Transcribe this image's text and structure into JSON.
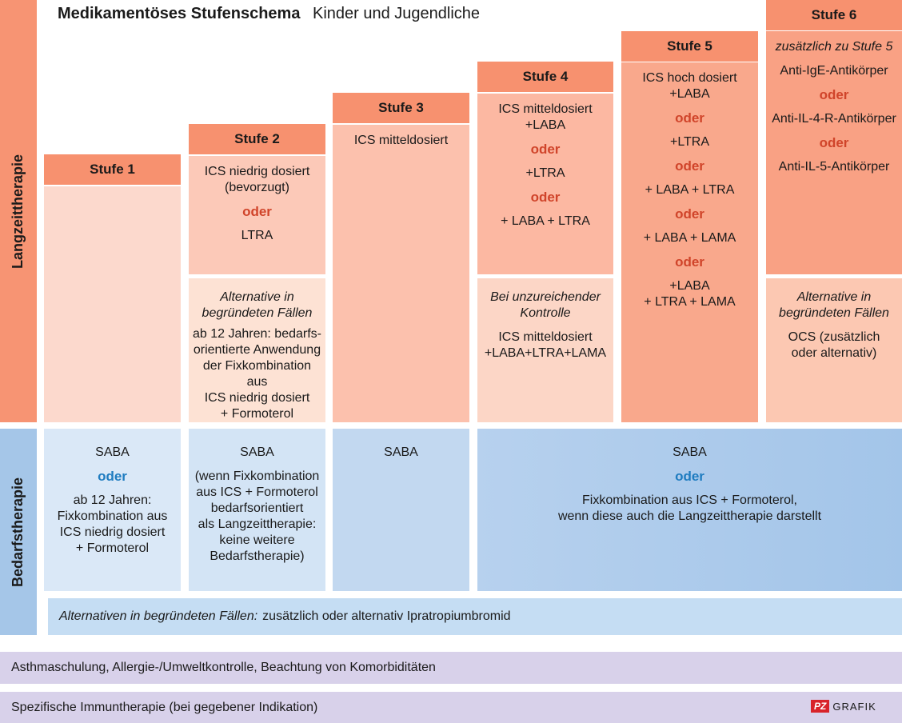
{
  "title": {
    "bold": "Medikamentöses Stufenschema",
    "subtitle": "Kinder und Jugendliche"
  },
  "sidebars": {
    "long_term": "Langzeittherapie",
    "on_demand": "Bedarfstherapie"
  },
  "steps": [
    {
      "header": "Stufe 1",
      "main": []
    },
    {
      "header": "Stufe 2",
      "main": [
        {
          "t": "text",
          "v": "ICS niedrig dosiert"
        },
        {
          "t": "text",
          "v": "(bevorzugt)"
        },
        {
          "t": "or",
          "v": "oder"
        },
        {
          "t": "text",
          "v": "LTRA"
        }
      ],
      "alt": [
        {
          "t": "it",
          "v": "Alternative in"
        },
        {
          "t": "it",
          "v": "begründeten Fällen"
        },
        {
          "t": "gap"
        },
        {
          "t": "text",
          "v": "ab 12 Jahren: bedarfs-"
        },
        {
          "t": "text",
          "v": "orientierte Anwendung"
        },
        {
          "t": "text",
          "v": "der Fixkombination aus"
        },
        {
          "t": "text",
          "v": "ICS niedrig dosiert"
        },
        {
          "t": "text",
          "v": "+ Formoterol"
        }
      ]
    },
    {
      "header": "Stufe 3",
      "main": [
        {
          "t": "text",
          "v": "ICS mitteldosiert"
        }
      ]
    },
    {
      "header": "Stufe 4",
      "main": [
        {
          "t": "text",
          "v": "ICS mitteldosiert"
        },
        {
          "t": "text",
          "v": "+LABA"
        },
        {
          "t": "or",
          "v": "oder"
        },
        {
          "t": "text",
          "v": "+LTRA"
        },
        {
          "t": "or",
          "v": "oder"
        },
        {
          "t": "text",
          "v": "+ LABA + LTRA"
        }
      ],
      "alt": [
        {
          "t": "it",
          "v": "Bei unzureichender"
        },
        {
          "t": "it",
          "v": "Kontrolle"
        },
        {
          "t": "gap"
        },
        {
          "t": "text",
          "v": "ICS mitteldosiert"
        },
        {
          "t": "text",
          "v": "+LABA+LTRA+LAMA"
        }
      ]
    },
    {
      "header": "Stufe 5",
      "main": [
        {
          "t": "text",
          "v": "ICS hoch dosiert"
        },
        {
          "t": "text",
          "v": "+LABA"
        },
        {
          "t": "or",
          "v": "oder"
        },
        {
          "t": "text",
          "v": "+LTRA"
        },
        {
          "t": "or",
          "v": "oder"
        },
        {
          "t": "text",
          "v": "+ LABA + LTRA"
        },
        {
          "t": "or",
          "v": "oder"
        },
        {
          "t": "text",
          "v": "+ LABA + LAMA"
        },
        {
          "t": "or",
          "v": "oder"
        },
        {
          "t": "text",
          "v": "+LABA"
        },
        {
          "t": "text",
          "v": "+ LTRA + LAMA"
        }
      ]
    },
    {
      "header": "Stufe 6",
      "main": [
        {
          "t": "it",
          "v": "zusätzlich zu Stufe 5"
        },
        {
          "t": "gap"
        },
        {
          "t": "text",
          "v": "Anti-IgE-Antikörper"
        },
        {
          "t": "or",
          "v": "oder"
        },
        {
          "t": "text",
          "v": "Anti-IL-4-R-Antikörper"
        },
        {
          "t": "or",
          "v": "oder"
        },
        {
          "t": "text",
          "v": "Anti-IL-5-Antikörper"
        }
      ],
      "alt": [
        {
          "t": "it",
          "v": "Alternative in"
        },
        {
          "t": "it",
          "v": "begründeten Fällen"
        },
        {
          "t": "gap"
        },
        {
          "t": "text",
          "v": "OCS  (zusätzlich"
        },
        {
          "t": "text",
          "v": "oder alternativ)"
        }
      ]
    }
  ],
  "on_demand": [
    [
      {
        "t": "text",
        "v": "SABA"
      },
      {
        "t": "or",
        "v": "oder"
      },
      {
        "t": "text",
        "v": "ab 12 Jahren:"
      },
      {
        "t": "text",
        "v": "Fixkombination aus"
      },
      {
        "t": "text",
        "v": "ICS niedrig dosiert"
      },
      {
        "t": "text",
        "v": "+ Formoterol"
      }
    ],
    [
      {
        "t": "text",
        "v": "SABA"
      },
      {
        "t": "gap"
      },
      {
        "t": "text",
        "v": "(wenn Fixkombination"
      },
      {
        "t": "text",
        "v": "aus ICS + Formoterol"
      },
      {
        "t": "text",
        "v": "bedarfsorientiert"
      },
      {
        "t": "text",
        "v": "als Langzeittherapie:"
      },
      {
        "t": "text",
        "v": "keine weitere"
      },
      {
        "t": "text",
        "v": "Bedarfstherapie)"
      }
    ],
    [
      {
        "t": "text",
        "v": "SABA"
      }
    ],
    [
      {
        "t": "text",
        "v": "SABA"
      },
      {
        "t": "or",
        "v": "oder"
      },
      {
        "t": "text",
        "v": "Fixkombination aus ICS + Formoterol,"
      },
      {
        "t": "text",
        "v": "wenn diese auch die Langzeittherapie darstellt"
      }
    ]
  ],
  "alternatives_band": {
    "italic": "Alternativen in begründeten Fällen:",
    "rest": "zusätzlich oder alternativ Ipratropiumbromid"
  },
  "bottom_bands": [
    "Asthmaschulung, Allergie-/Umweltkontrolle, Beachtung von Komorbiditäten",
    "Spezifische Immuntherapie (bei gegebener Indikation)"
  ],
  "logo": {
    "pz": "PZ",
    "grafik": "GRAFIK"
  },
  "colors": {
    "sidebar_long": "#f79473",
    "sidebar_demand": "#a5c6e8",
    "header": "#f7916f",
    "bands_lavender": "#d8d1ea",
    "alt_band": "#c5ddf3"
  }
}
